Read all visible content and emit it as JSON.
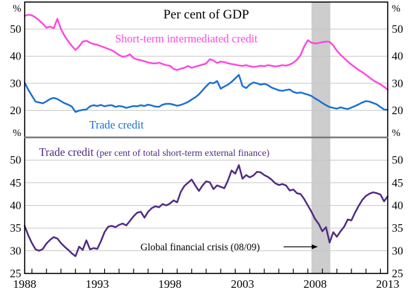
{
  "title": "Per cent of GDP",
  "annotation": {
    "text": "Global financial crisis (08/09)",
    "arrow_points_to_year": 2009,
    "arrow_points_to_value": 32
  },
  "x_axis": {
    "labels": [
      "1988",
      "1993",
      "1998",
      "2003",
      "2008",
      "2013"
    ],
    "label_years": [
      1988,
      1993,
      1998,
      2003,
      2008,
      2013
    ],
    "range": [
      1988,
      2013
    ],
    "minor_tick_interval_years": 1,
    "crisis_band": {
      "from_year": 2007.75,
      "to_year": 2009.05,
      "color": "#cdcdcd"
    }
  },
  "colors": {
    "short_term_intermediated_credit": "#ff46e0",
    "trade_credit": "#1b6fd0",
    "trade_credit_share": "#4e2a84",
    "gridline": "#c5c5c5",
    "panel_divider": "#787878",
    "frame": "#000000",
    "crisis_band": "#cdcdcd",
    "text": "#000000"
  },
  "chart_data": [
    {
      "type": "line",
      "panel": "top",
      "title": "Per cent of GDP",
      "unit_label": "%",
      "ylim": [
        10,
        60
      ],
      "yticks": [
        50,
        40,
        30,
        20
      ],
      "x_start_year": 1988,
      "x_step_years": 0.25,
      "grid": true,
      "series": [
        {
          "name": "Short-term intermediated credit",
          "color": "#ff46e0",
          "values": [
            54.9,
            55.3,
            55.1,
            54.3,
            53.2,
            52.0,
            50.5,
            50.9,
            50.3,
            53.8,
            50.0,
            47.5,
            45.5,
            43.8,
            42.3,
            43.6,
            45.4,
            45.7,
            45.0,
            44.5,
            44.2,
            43.7,
            43.2,
            42.7,
            42.2,
            41.4,
            40.4,
            39.8,
            40.0,
            40.7,
            39.3,
            38.8,
            38.5,
            38.1,
            37.7,
            37.4,
            37.3,
            37.6,
            37.1,
            36.7,
            36.5,
            35.3,
            34.9,
            35.4,
            35.7,
            36.4,
            35.7,
            36.1,
            36.5,
            36.9,
            37.3,
            38.9,
            38.4,
            37.5,
            38.0,
            37.8,
            37.4,
            37.1,
            36.9,
            36.6,
            36.4,
            36.7,
            36.3,
            36.0,
            36.2,
            36.5,
            36.3,
            36.7,
            36.5,
            36.2,
            36.4,
            36.7,
            36.5,
            36.9,
            37.6,
            38.7,
            40.4,
            43.6,
            45.9,
            45.0,
            44.7,
            44.9,
            45.2,
            45.4,
            45.3,
            44.0,
            42.0,
            40.5,
            39.3,
            38.0,
            36.9,
            35.9,
            34.9,
            34.1,
            33.1,
            32.1,
            31.1,
            30.3,
            29.6,
            28.7,
            27.6
          ]
        },
        {
          "name": "Trade credit",
          "color": "#1b6fd0",
          "values": [
            30.2,
            27.6,
            25.4,
            23.2,
            22.9,
            22.6,
            23.3,
            24.2,
            24.6,
            24.2,
            23.4,
            22.6,
            22.1,
            21.4,
            19.4,
            19.9,
            20.2,
            20.3,
            21.5,
            21.9,
            21.6,
            22.0,
            21.5,
            21.8,
            21.9,
            21.3,
            21.6,
            21.4,
            20.9,
            21.3,
            21.6,
            21.5,
            21.9,
            21.6,
            22.1,
            21.8,
            21.4,
            21.3,
            22.1,
            22.4,
            22.4,
            22.1,
            21.7,
            22.0,
            22.5,
            23.1,
            24.0,
            24.8,
            25.9,
            27.4,
            28.9,
            30.2,
            30.0,
            30.8,
            28.0,
            28.8,
            29.5,
            30.5,
            31.8,
            33.1,
            29.0,
            28.2,
            29.5,
            30.3,
            30.0,
            29.5,
            29.8,
            29.3,
            28.4,
            27.9,
            27.4,
            27.2,
            27.5,
            27.7,
            26.8,
            26.4,
            26.6,
            26.2,
            25.8,
            25.3,
            24.4,
            23.6,
            22.7,
            21.9,
            21.2,
            20.9,
            20.6,
            21.1,
            20.7,
            20.5,
            21.0,
            21.6,
            22.2,
            22.9,
            23.4,
            23.2,
            22.7,
            22.2,
            21.2,
            20.3,
            20.2
          ]
        }
      ]
    },
    {
      "type": "line",
      "panel": "bottom",
      "unit_label": "%",
      "ylim": [
        25,
        55
      ],
      "yticks": [
        50,
        45,
        40,
        35,
        30,
        25
      ],
      "x_start_year": 1988,
      "x_step_years": 0.25,
      "grid": true,
      "series": [
        {
          "name": "Trade credit (per cent of total short-term external finance)",
          "label_main": "Trade credit ",
          "label_paren": "(per cent of total short-term external finance)",
          "color": "#4e2a84",
          "values": [
            35.5,
            33.4,
            31.7,
            30.3,
            30.0,
            30.4,
            31.6,
            32.4,
            33.0,
            32.7,
            31.7,
            30.9,
            30.2,
            29.4,
            28.8,
            30.9,
            30.2,
            32.3,
            30.3,
            30.6,
            30.4,
            32.1,
            34.1,
            35.3,
            35.5,
            35.2,
            35.7,
            36.0,
            35.6,
            36.6,
            37.6,
            38.4,
            38.6,
            37.3,
            38.6,
            39.4,
            39.8,
            39.6,
            40.3,
            40.0,
            40.4,
            41.1,
            40.7,
            43.0,
            44.3,
            45.0,
            45.7,
            44.4,
            43.2,
            44.4,
            45.3,
            45.1,
            43.6,
            44.4,
            44.1,
            43.8,
            45.5,
            47.7,
            47.0,
            48.9,
            45.9,
            46.7,
            46.2,
            46.6,
            47.4,
            47.3,
            46.7,
            46.3,
            45.7,
            44.9,
            44.5,
            44.7,
            44.4,
            43.3,
            43.5,
            42.7,
            42.5,
            41.4,
            40.0,
            38.6,
            37.0,
            35.9,
            34.3,
            35.2,
            31.8,
            34.1,
            33.1,
            34.3,
            35.3,
            36.9,
            36.7,
            38.4,
            39.9,
            41.2,
            42.1,
            42.6,
            42.9,
            42.7,
            42.4,
            40.9,
            42.0
          ]
        }
      ]
    }
  ]
}
